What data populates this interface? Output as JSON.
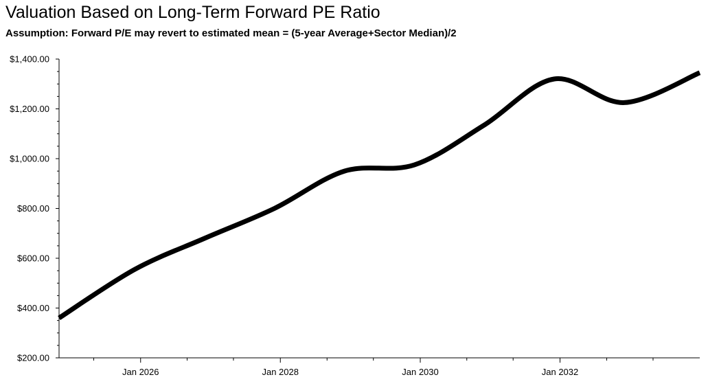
{
  "chart_data": {
    "type": "line",
    "title": "Valuation Based on Long-Term Forward PE Ratio",
    "subtitle": "Assumption: Forward P/E may revert to estimated mean = (5-year Average+Sector Median)/2",
    "xlabel": "",
    "ylabel": "",
    "x_type": "date",
    "xlim": [
      "2024-11-01",
      "2033-12-31"
    ],
    "ylim": [
      200,
      1400
    ],
    "x_ticks": [
      {
        "date": "2026-01-01",
        "label": "Jan 2026"
      },
      {
        "date": "2028-01-01",
        "label": "Jan 2028"
      },
      {
        "date": "2030-01-01",
        "label": "Jan 2030"
      },
      {
        "date": "2032-01-01",
        "label": "Jan 2032"
      }
    ],
    "y_ticks": [
      {
        "value": 200,
        "label": "$200.00"
      },
      {
        "value": 400,
        "label": "$400.00"
      },
      {
        "value": 600,
        "label": "$600.00"
      },
      {
        "value": 800,
        "label": "$800.00"
      },
      {
        "value": 1000,
        "label": "$1,000.00"
      },
      {
        "value": 1200,
        "label": "$1,200.00"
      },
      {
        "value": 1400,
        "label": "$1,400.00"
      }
    ],
    "grid": false,
    "legend": "none",
    "line_color": "#000000",
    "series": [
      {
        "x": [
          "2024-11-01",
          "2025-12-01",
          "2026-12-01",
          "2027-12-01",
          "2028-12-01",
          "2029-12-01",
          "2030-12-01",
          "2031-12-01",
          "2032-12-01",
          "2033-12-31"
        ],
        "values": [
          360,
          555,
          680,
          800,
          950,
          975,
          1135,
          1320,
          1225,
          1345
        ]
      }
    ]
  }
}
